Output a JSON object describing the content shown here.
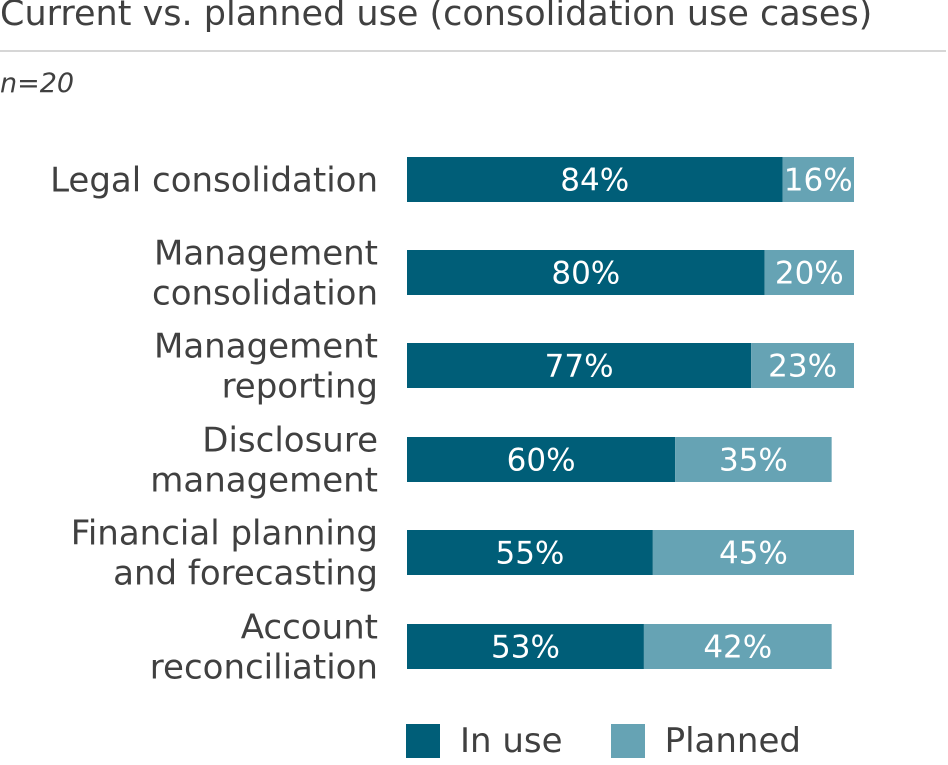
{
  "title": "Current vs. planned use (consolidation use cases)",
  "subtitle": "n=20",
  "colors": {
    "in_use": "#005e78",
    "planned": "#66a3b4"
  },
  "legend": [
    {
      "label": "In use",
      "color_key": "in_use"
    },
    {
      "label": "Planned",
      "color_key": "planned"
    }
  ],
  "chart_data": {
    "type": "bar",
    "orientation": "horizontal",
    "stacked": true,
    "categories": [
      "Legal consolidation",
      "Management consolidation",
      "Management reporting",
      "Disclosure management",
      "Financial planning and forecasting",
      "Account reconciliation"
    ],
    "category_lines": [
      [
        "Legal consolidation"
      ],
      [
        "Management",
        "consolidation"
      ],
      [
        "Management",
        "reporting"
      ],
      [
        "Disclosure",
        "management"
      ],
      [
        "Financial planning",
        "and forecasting"
      ],
      [
        "Account",
        "reconciliation"
      ]
    ],
    "series": [
      {
        "name": "In use",
        "values": [
          84,
          80,
          77,
          60,
          55,
          53
        ],
        "labels": [
          "84%",
          "80%",
          "77%",
          "60%",
          "55%",
          "53%"
        ]
      },
      {
        "name": "Planned",
        "values": [
          16,
          20,
          23,
          35,
          45,
          42
        ],
        "labels": [
          "16%",
          "20%",
          "23%",
          "35%",
          "45%",
          "42%"
        ]
      }
    ],
    "xlim": [
      0,
      100
    ],
    "grid": false,
    "legend_position": "bottom"
  }
}
